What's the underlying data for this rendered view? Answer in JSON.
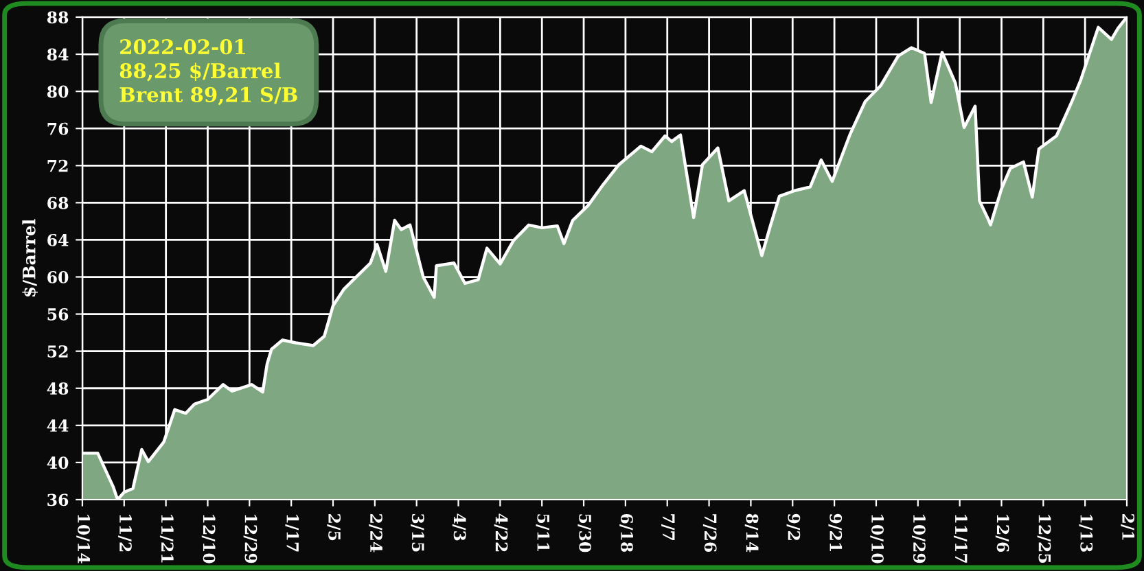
{
  "chart_data": {
    "type": "area",
    "ylabel": "$/Barrel",
    "annotations": [
      "2022-02-01\n88,25 $/Barrel\nBrent 89,21 S/B"
    ],
    "x": [
      "2020-10-14",
      "2020-10-21",
      "2020-10-28",
      "2020-10-30",
      "2020-11-02",
      "2020-11-06",
      "2020-11-10",
      "2020-11-13",
      "2020-11-20",
      "2020-11-25",
      "2020-11-30",
      "2020-12-04",
      "2020-12-10",
      "2020-12-17",
      "2020-12-21",
      "2020-12-30",
      "2021-01-04",
      "2021-01-06",
      "2021-01-08",
      "2021-01-13",
      "2021-01-19",
      "2021-01-27",
      "2021-02-01",
      "2021-02-05",
      "2021-02-10",
      "2021-02-16",
      "2021-02-22",
      "2021-02-25",
      "2021-03-01",
      "2021-03-05",
      "2021-03-08",
      "2021-03-12",
      "2021-03-18",
      "2021-03-23",
      "2021-03-24",
      "2021-04-01",
      "2021-04-06",
      "2021-04-12",
      "2021-04-16",
      "2021-04-22",
      "2021-04-28",
      "2021-05-05",
      "2021-05-11",
      "2021-05-18",
      "2021-05-21",
      "2021-05-25",
      "2021-06-01",
      "2021-06-08",
      "2021-06-15",
      "2021-06-25",
      "2021-06-30",
      "2021-07-06",
      "2021-07-09",
      "2021-07-13",
      "2021-07-19",
      "2021-07-23",
      "2021-07-30",
      "2021-08-04",
      "2021-08-11",
      "2021-08-19",
      "2021-08-23",
      "2021-08-27",
      "2021-09-03",
      "2021-09-10",
      "2021-09-15",
      "2021-09-20",
      "2021-09-28",
      "2021-10-05",
      "2021-10-12",
      "2021-10-20",
      "2021-10-26",
      "2021-11-01",
      "2021-11-04",
      "2021-11-09",
      "2021-11-15",
      "2021-11-19",
      "2021-11-24",
      "2021-11-26",
      "2021-11-30",
      "2021-12-01",
      "2021-12-06",
      "2021-12-10",
      "2021-12-16",
      "2021-12-20",
      "2021-12-23",
      "2021-12-31",
      "2022-01-07",
      "2022-01-11",
      "2022-01-19",
      "2022-01-25",
      "2022-01-28",
      "2022-02-01"
    ],
    "series": [
      {
        "color": "#7fa882",
        "values": [
          41.0,
          41.0,
          37.4,
          36.0,
          36.8,
          37.2,
          41.4,
          40.1,
          42.2,
          45.7,
          45.3,
          46.3,
          46.8,
          48.4,
          47.7,
          48.4,
          47.6,
          50.6,
          52.2,
          53.2,
          52.9,
          52.6,
          53.6,
          56.9,
          58.7,
          60.1,
          61.5,
          63.5,
          60.6,
          66.1,
          65.1,
          65.6,
          60.0,
          57.8,
          61.2,
          61.5,
          59.3,
          59.7,
          63.1,
          61.4,
          63.9,
          65.6,
          65.3,
          65.5,
          63.6,
          66.1,
          67.7,
          70.0,
          72.1,
          74.1,
          73.5,
          75.2,
          74.6,
          75.3,
          66.4,
          72.1,
          73.9,
          68.2,
          69.3,
          62.3,
          65.6,
          68.7,
          69.3,
          69.7,
          72.6,
          70.3,
          75.3,
          78.9,
          80.6,
          83.8,
          84.7,
          84.1,
          78.8,
          84.2,
          80.9,
          76.1,
          78.4,
          68.2,
          66.2,
          65.6,
          69.5,
          71.7,
          72.4,
          68.6,
          73.8,
          75.2,
          78.9,
          81.2,
          86.9,
          85.6,
          86.8,
          88.0
        ]
      }
    ],
    "xlim": [
      "2020-10-14",
      "2022-02-01"
    ],
    "xticks": [
      {
        "value": "2020-10-14",
        "label": "10/14"
      },
      {
        "value": "2020-11-02",
        "label": "11/2"
      },
      {
        "value": "2020-11-21",
        "label": "11/21"
      },
      {
        "value": "2020-12-10",
        "label": "12/10"
      },
      {
        "value": "2020-12-29",
        "label": "12/29"
      },
      {
        "value": "2021-01-17",
        "label": "1/17"
      },
      {
        "value": "2021-02-05",
        "label": "2/5"
      },
      {
        "value": "2021-02-24",
        "label": "2/24"
      },
      {
        "value": "2021-03-15",
        "label": "3/15"
      },
      {
        "value": "2021-04-03",
        "label": "4/3"
      },
      {
        "value": "2021-04-22",
        "label": "4/22"
      },
      {
        "value": "2021-05-11",
        "label": "5/11"
      },
      {
        "value": "2021-05-30",
        "label": "5/30"
      },
      {
        "value": "2021-06-18",
        "label": "6/18"
      },
      {
        "value": "2021-07-07",
        "label": "7/7"
      },
      {
        "value": "2021-07-26",
        "label": "7/26"
      },
      {
        "value": "2021-08-14",
        "label": "8/14"
      },
      {
        "value": "2021-09-02",
        "label": "9/2"
      },
      {
        "value": "2021-09-21",
        "label": "9/21"
      },
      {
        "value": "2021-10-10",
        "label": "10/10"
      },
      {
        "value": "2021-10-29",
        "label": "10/29"
      },
      {
        "value": "2021-11-17",
        "label": "11/17"
      },
      {
        "value": "2021-12-06",
        "label": "12/6"
      },
      {
        "value": "2021-12-25",
        "label": "12/25"
      },
      {
        "value": "2022-01-13",
        "label": "1/13"
      },
      {
        "value": "2022-02-01",
        "label": "2/1"
      }
    ],
    "ylim": [
      36,
      88
    ],
    "yticks": [
      36,
      40,
      44,
      48,
      52,
      56,
      60,
      64,
      68,
      72,
      76,
      80,
      84,
      88
    ],
    "grid": true
  }
}
